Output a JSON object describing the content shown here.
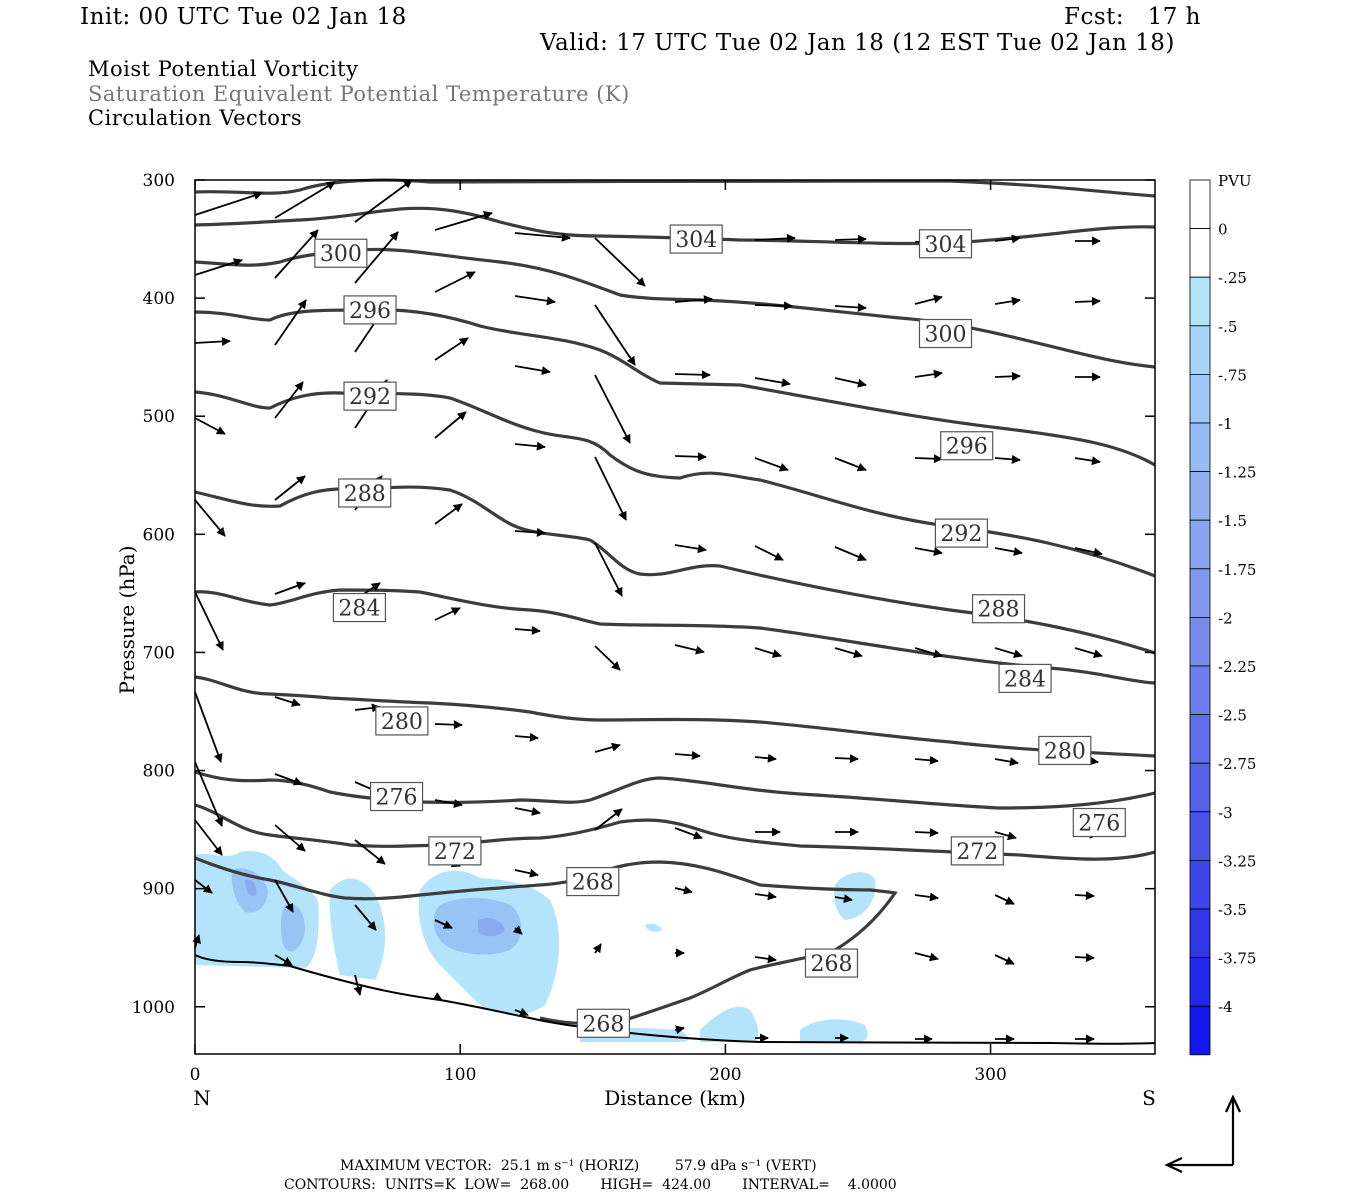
{
  "header": {
    "init": "Init: 00 UTC Tue 02 Jan 18",
    "fcst": "Fcst:   17 h",
    "valid": "Valid: 17 UTC Tue 02 Jan 18 (12 EST Tue 02 Jan 18)"
  },
  "legend_titles": [
    "Moist Potential Vorticity",
    "Saturation Equivalent Potential Temperature (K)",
    "Circulation Vectors"
  ],
  "colors": {
    "contour": "#3c3c3c",
    "terrain": "#000000",
    "pv_fill_light": "#b4e4fb",
    "pv_fill_mid": "#98c4f5",
    "pv_fill_dark": "#8aaaf0"
  },
  "footer": {
    "line1": "MAXIMUM VECTOR:  25.1 m s⁻¹ (HORIZ)        57.9 dPa s⁻¹ (VERT)",
    "line2": "CONTOURS:  UNITS=K  LOW=  268.00       HIGH=  424.00       INTERVAL=    4.0000"
  },
  "chart_data": {
    "type": "contour",
    "xlabel": "Distance (km)",
    "ylabel": "Pressure (hPa)",
    "xlim": [
      0,
      362
    ],
    "ylim": [
      300,
      1040
    ],
    "x_ticks": [
      0,
      100,
      200,
      300
    ],
    "y_ticks": [
      300,
      400,
      500,
      600,
      700,
      800,
      900,
      1000
    ],
    "x_end_labels": {
      "left": "N",
      "right": "S"
    },
    "colorbar": {
      "title": "PVU",
      "labels": [
        "0",
        "-.25",
        "-.5",
        "-.75",
        "-1",
        "-1.25",
        "-1.5",
        "-1.75",
        "-2",
        "-2.25",
        "-2.5",
        "-2.75",
        "-3",
        "-3.25",
        "-3.5",
        "-3.75",
        "-4"
      ],
      "colors": [
        "#ffffff",
        "#ffffff",
        "#b4e4fb",
        "#a8d4f8",
        "#a0c8f6",
        "#98bcf4",
        "#90b0f2",
        "#88a4f0",
        "#8098ee",
        "#788cec",
        "#6c7eeb",
        "#6070ea",
        "#5462e9",
        "#4854e8",
        "#3c46e8",
        "#2e36e8",
        "#2028ea",
        "#1018ee"
      ]
    },
    "contour_labels": [
      {
        "value": "304",
        "x": 189,
        "p": 350
      },
      {
        "value": "304",
        "x": 283,
        "p": 354
      },
      {
        "value": "300",
        "x": 55,
        "p": 362
      },
      {
        "value": "300",
        "x": 283,
        "p": 430
      },
      {
        "value": "296",
        "x": 66,
        "p": 410
      },
      {
        "value": "296",
        "x": 291,
        "p": 525
      },
      {
        "value": "292",
        "x": 66,
        "p": 483
      },
      {
        "value": "292",
        "x": 289,
        "p": 599
      },
      {
        "value": "288",
        "x": 64,
        "p": 565
      },
      {
        "value": "288",
        "x": 303,
        "p": 663
      },
      {
        "value": "284",
        "x": 62,
        "p": 662
      },
      {
        "value": "284",
        "x": 313,
        "p": 722
      },
      {
        "value": "280",
        "x": 78,
        "p": 758
      },
      {
        "value": "280",
        "x": 328,
        "p": 783
      },
      {
        "value": "276",
        "x": 76,
        "p": 822
      },
      {
        "value": "276",
        "x": 341,
        "p": 844
      },
      {
        "value": "272",
        "x": 98,
        "p": 868
      },
      {
        "value": "272",
        "x": 295,
        "p": 868
      },
      {
        "value": "268",
        "x": 150,
        "p": 894
      },
      {
        "value": "268",
        "x": 240,
        "p": 963
      },
      {
        "value": "268",
        "x": 154,
        "p": 1014
      }
    ]
  }
}
